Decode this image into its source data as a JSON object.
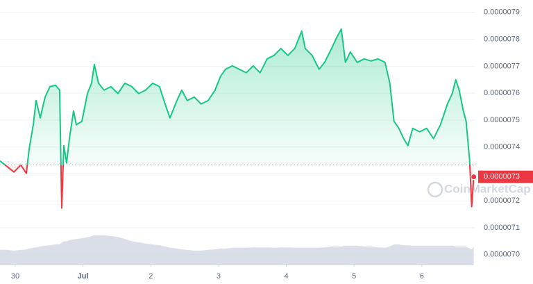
{
  "chart_data": {
    "type": "line",
    "x": [
      29.775,
      29.877,
      29.98,
      30.082,
      30.164,
      30.205,
      30.266,
      30.307,
      30.369,
      30.44,
      30.512,
      30.594,
      30.655,
      30.686,
      30.717,
      30.758,
      30.799,
      30.86,
      30.901,
      30.983,
      31.065,
      31.126,
      31.167,
      31.228,
      31.31,
      31.413,
      31.515,
      31.617,
      31.72,
      31.822,
      31.924,
      32.027,
      32.129,
      32.211,
      32.283,
      32.385,
      32.457,
      32.538,
      32.641,
      32.743,
      32.846,
      32.948,
      33.03,
      33.102,
      33.204,
      33.306,
      33.409,
      33.511,
      33.613,
      33.716,
      33.818,
      33.92,
      34.023,
      34.125,
      34.227,
      34.279,
      34.381,
      34.483,
      34.565,
      34.668,
      34.739,
      34.811,
      34.872,
      34.944,
      35.046,
      35.149,
      35.251,
      35.353,
      35.456,
      35.527,
      35.589,
      35.66,
      35.732,
      35.794,
      35.865,
      35.967,
      36.07,
      36.172,
      36.274,
      36.377,
      36.448,
      36.5,
      36.551,
      36.612,
      36.653,
      36.704,
      36.735,
      36.766
    ],
    "series": [
      {
        "color": "#16c784",
        "down_color": "#ea3943",
        "values": [
          7.3485e-06,
          7.3278e-06,
          7.3072e-06,
          7.333e-06,
          7.3021e-06,
          7.3923e-06,
          7.4825e-06,
          7.5727e-06,
          7.5082e-06,
          7.5856e-06,
          7.6242e-06,
          7.6294e-06,
          7.6113e-06,
          7.1732e-06,
          7.4052e-06,
          7.3407e-06,
          7.4309e-06,
          7.534e-06,
          7.4825e-06,
          7.4954e-06,
          7.5985e-06,
          7.6371e-06,
          7.7067e-06,
          7.6371e-06,
          7.6113e-06,
          7.6242e-06,
          7.5985e-06,
          7.6371e-06,
          7.6242e-06,
          7.5985e-06,
          7.6113e-06,
          7.6371e-06,
          7.6242e-06,
          7.5598e-06,
          7.5082e-06,
          7.5727e-06,
          7.6113e-06,
          7.5727e-06,
          7.5856e-06,
          7.5598e-06,
          7.5727e-06,
          7.6113e-06,
          7.6629e-06,
          7.6887e-06,
          7.7015e-06,
          7.6887e-06,
          7.6758e-06,
          7.7015e-06,
          7.6758e-06,
          7.7273e-06,
          7.7402e-06,
          7.766e-06,
          7.7402e-06,
          7.766e-06,
          7.8304e-06,
          7.766e-06,
          7.7402e-06,
          7.6887e-06,
          7.7144e-06,
          7.766e-06,
          7.8046e-06,
          7.8381e-06,
          7.7144e-06,
          7.7531e-06,
          7.7144e-06,
          7.7273e-06,
          7.7196e-06,
          7.7273e-06,
          7.7144e-06,
          7.6371e-06,
          7.4954e-06,
          7.4696e-06,
          7.4309e-06,
          7.4052e-06,
          7.4696e-06,
          7.4567e-06,
          7.4696e-06,
          7.4309e-06,
          7.4825e-06,
          7.5598e-06,
          7.5985e-06,
          7.65e-06,
          7.6113e-06,
          7.534e-06,
          7.4954e-06,
          7.3536e-06,
          7.1784e-06,
          7.2892e-06
        ]
      },
      {
        "axis": "y2",
        "color": "#cfd6e4",
        "values": [
          37,
          37,
          35,
          37,
          38,
          40,
          42,
          43,
          45,
          47,
          48,
          50,
          50,
          55,
          57,
          58,
          60,
          62,
          63,
          65,
          67,
          70,
          72,
          72,
          72,
          70,
          68,
          63,
          58,
          55,
          52,
          50,
          48,
          45,
          42,
          40,
          38,
          37,
          35,
          35,
          37,
          38,
          40,
          40,
          42,
          42,
          42,
          43,
          43,
          43,
          42,
          43,
          43,
          42,
          42,
          42,
          42,
          42,
          43,
          45,
          45,
          45,
          47,
          47,
          47,
          45,
          45,
          43,
          42,
          45,
          50,
          50,
          48,
          48,
          47,
          47,
          47,
          47,
          47,
          47,
          47,
          45,
          45,
          45,
          45,
          40,
          38,
          45
        ]
      }
    ],
    "reference_line": 7.3336e-06,
    "last_price_label": "0.0000073",
    "watermark": "CoinMarketCap",
    "xlim": [
      29.775,
      36.79
    ],
    "xticks": [
      30,
      {
        "value": 31,
        "label": "Jul"
      },
      {
        "value": 32,
        "label": "2"
      },
      {
        "value": 33,
        "label": "3"
      },
      {
        "value": 34,
        "label": "4"
      },
      {
        "value": 35,
        "label": "5"
      },
      {
        "value": 36,
        "label": "6"
      }
    ],
    "ylim": [
      6.966e-06,
      7.946e-06
    ],
    "yticks": [
      7.9e-06,
      7.8e-06,
      7.7e-06,
      7.6e-06,
      7.5e-06,
      7.4e-06,
      7.3e-06,
      7.2e-06,
      7.1e-06,
      {
        "value": 7e-06,
        "label": "0.0000070"
      }
    ],
    "y2lim": [
      0,
      100
    ],
    "grid": true
  }
}
